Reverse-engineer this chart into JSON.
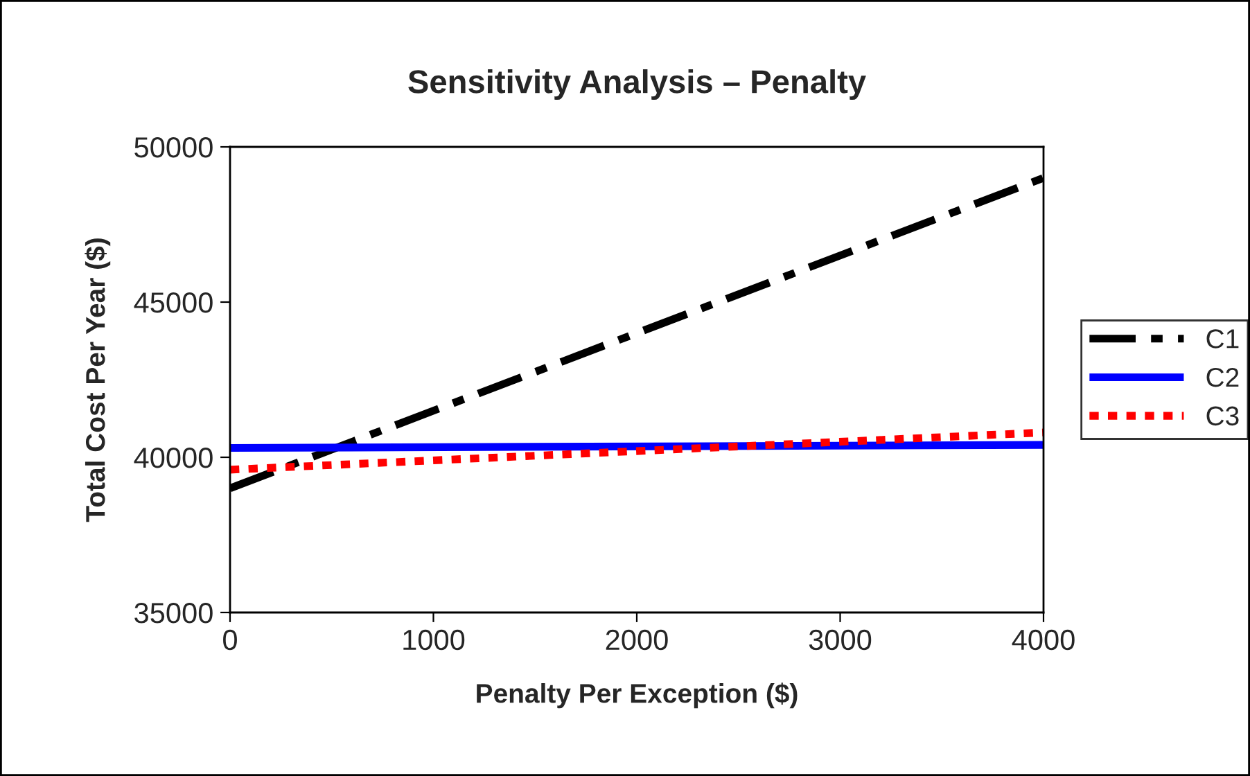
{
  "chart_data": {
    "type": "line",
    "title": "Sensitivity Analysis – Penalty",
    "xlabel": "Penalty Per Exception ($)",
    "ylabel": "Total Cost Per Year ($)",
    "x": [
      0,
      4000
    ],
    "series": [
      {
        "name": "C1",
        "color": "#000000",
        "values": [
          39000,
          49000
        ],
        "line_style": "dashdot"
      },
      {
        "name": "C2",
        "color": "#0000ff",
        "values": [
          40300,
          40400
        ],
        "line_style": "solid"
      },
      {
        "name": "C3",
        "color": "#ff0000",
        "values": [
          39600,
          40800
        ],
        "line_style": "dotted"
      }
    ],
    "xlim": [
      0,
      4000
    ],
    "xticks": [
      0,
      1000,
      2000,
      3000,
      4000
    ],
    "ylim": [
      35000,
      50000
    ],
    "yticks": [
      35000,
      40000,
      45000,
      50000
    ],
    "grid": false,
    "legend": "right",
    "marker": "none"
  }
}
